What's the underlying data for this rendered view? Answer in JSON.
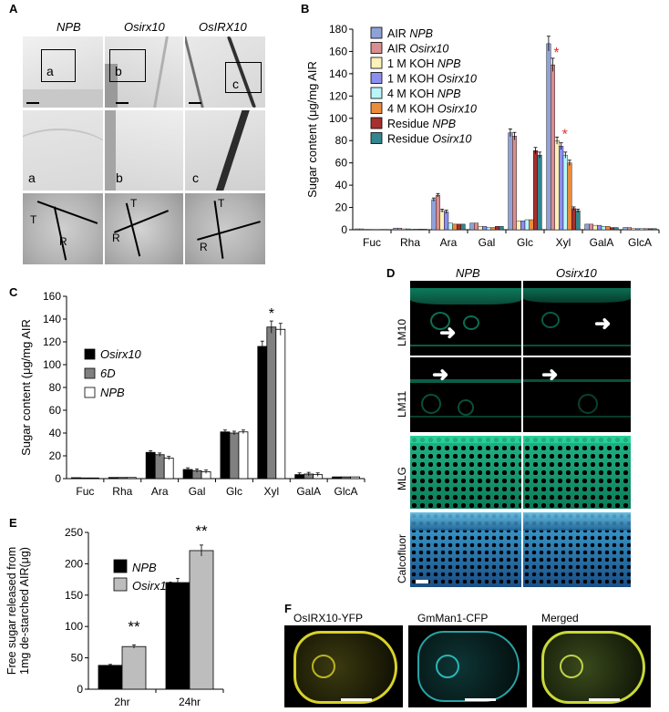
{
  "panels": {
    "A": {
      "letter": "A",
      "columns": [
        "NPB",
        "Osirx10",
        "OsIRX10"
      ],
      "insets": [
        "a",
        "b",
        "c"
      ],
      "tissue_labels": [
        "T",
        "R"
      ]
    },
    "B": {
      "letter": "B"
    },
    "C": {
      "letter": "C"
    },
    "D": {
      "letter": "D",
      "columns": [
        "NPB",
        "Osirx10"
      ],
      "rows": [
        "LM10",
        "LM11",
        "MLG",
        "Calcofluor"
      ]
    },
    "E": {
      "letter": "E"
    },
    "F": {
      "letter": "F",
      "channels": [
        "OsIRX10-YFP",
        "GmMan1-CFP",
        "Merged"
      ]
    }
  },
  "chart_data": [
    {
      "id": "B",
      "type": "bar",
      "ylabel": "Sugar content (μg/mg AIR",
      "ylim": [
        0,
        180
      ],
      "yticks": [
        0,
        20,
        40,
        60,
        80,
        100,
        120,
        140,
        160,
        180
      ],
      "categories": [
        "Fuc",
        "Rha",
        "Ara",
        "Gal",
        "Glc",
        "Xyl",
        "GalA",
        "GlcA"
      ],
      "legend_position": "top-left",
      "colors": [
        "#8fa2d8",
        "#d98e92",
        "#fff2b8",
        "#8d8ff0",
        "#b8f6fb",
        "#ec8c3a",
        "#a62f2f",
        "#33868e"
      ],
      "series": [
        {
          "name": "AIR ",
          "name_italic": "NPB",
          "values": [
            0.8,
            1.5,
            27,
            6,
            87,
            167,
            5,
            2
          ]
        },
        {
          "name": "AIR ",
          "name_italic": "Osirx10",
          "values": [
            0.8,
            1.5,
            31,
            6,
            84,
            148,
            5,
            2
          ]
        },
        {
          "name": "1 M KOH ",
          "name_italic": "NPB",
          "values": [
            0.3,
            0.8,
            17,
            3,
            8,
            80,
            4,
            1
          ]
        },
        {
          "name": "1 M KOH ",
          "name_italic": "Osirx10",
          "values": [
            0.3,
            0.8,
            16,
            3,
            8,
            75,
            4,
            1
          ]
        },
        {
          "name": "4 M KOH ",
          "name_italic": "NPB",
          "values": [
            0.2,
            0.5,
            6,
            2,
            9,
            67,
            3,
            1
          ]
        },
        {
          "name": "4 M KOH ",
          "name_italic": "Osirx10",
          "values": [
            0.2,
            0.5,
            5,
            2,
            9,
            60,
            3,
            1
          ]
        },
        {
          "name": "Residue ",
          "name_italic": "NPB",
          "values": [
            0.3,
            0.5,
            5,
            3,
            71,
            19,
            2,
            1
          ]
        },
        {
          "name": "Residue ",
          "name_italic": "Osirx10",
          "values": [
            0.3,
            0.5,
            5,
            3,
            67,
            17,
            2,
            1
          ]
        }
      ],
      "annotations": [
        {
          "text": "*",
          "category": "Xyl",
          "series": 1,
          "color": "#e53030"
        },
        {
          "text": "*",
          "category": "Xyl",
          "series": 3,
          "color": "#e53030"
        }
      ]
    },
    {
      "id": "C",
      "type": "bar",
      "ylabel": "Sugar content (μg/mg AIR",
      "ylim": [
        0,
        160
      ],
      "yticks": [
        0,
        20,
        40,
        60,
        80,
        100,
        120,
        140,
        160
      ],
      "categories": [
        "Fuc",
        "Rha",
        "Ara",
        "Gal",
        "Glc",
        "Xyl",
        "GalA",
        "GlcA"
      ],
      "legend_position": "top-left",
      "colors": [
        "#000000",
        "#808080",
        "#ffffff"
      ],
      "series": [
        {
          "name": "Osirx10",
          "values": [
            0.8,
            1,
            23,
            8,
            41,
            116,
            3.5,
            1.5
          ]
        },
        {
          "name": "6D",
          "values": [
            0.6,
            1,
            21,
            7,
            40,
            133,
            4,
            1.5
          ]
        },
        {
          "name": "NPB",
          "values": [
            0.6,
            1,
            18,
            6,
            41,
            131,
            3.5,
            1.5
          ]
        }
      ],
      "annotations": [
        {
          "text": "*",
          "category": "Xyl",
          "series": 1,
          "color": "#000000"
        }
      ]
    },
    {
      "id": "E",
      "type": "bar",
      "ylabel_lines": [
        "Free sugar released from",
        "1mg de-starched AIR(μg)"
      ],
      "ylim": [
        0,
        250
      ],
      "yticks": [
        0,
        50,
        100,
        150,
        200,
        250
      ],
      "categories": [
        "2hr",
        "24hr"
      ],
      "legend_position": "top-left",
      "colors": [
        "#000000",
        "#bdbdbd"
      ],
      "series": [
        {
          "name": "NPB",
          "values": [
            38,
            170
          ]
        },
        {
          "name": "Osirx10",
          "values": [
            68,
            221
          ]
        }
      ],
      "annotations": [
        {
          "text": "**",
          "category": "2hr",
          "series": 1,
          "color": "#000000"
        },
        {
          "text": "**",
          "category": "24hr",
          "series": 1,
          "color": "#000000"
        }
      ]
    }
  ]
}
